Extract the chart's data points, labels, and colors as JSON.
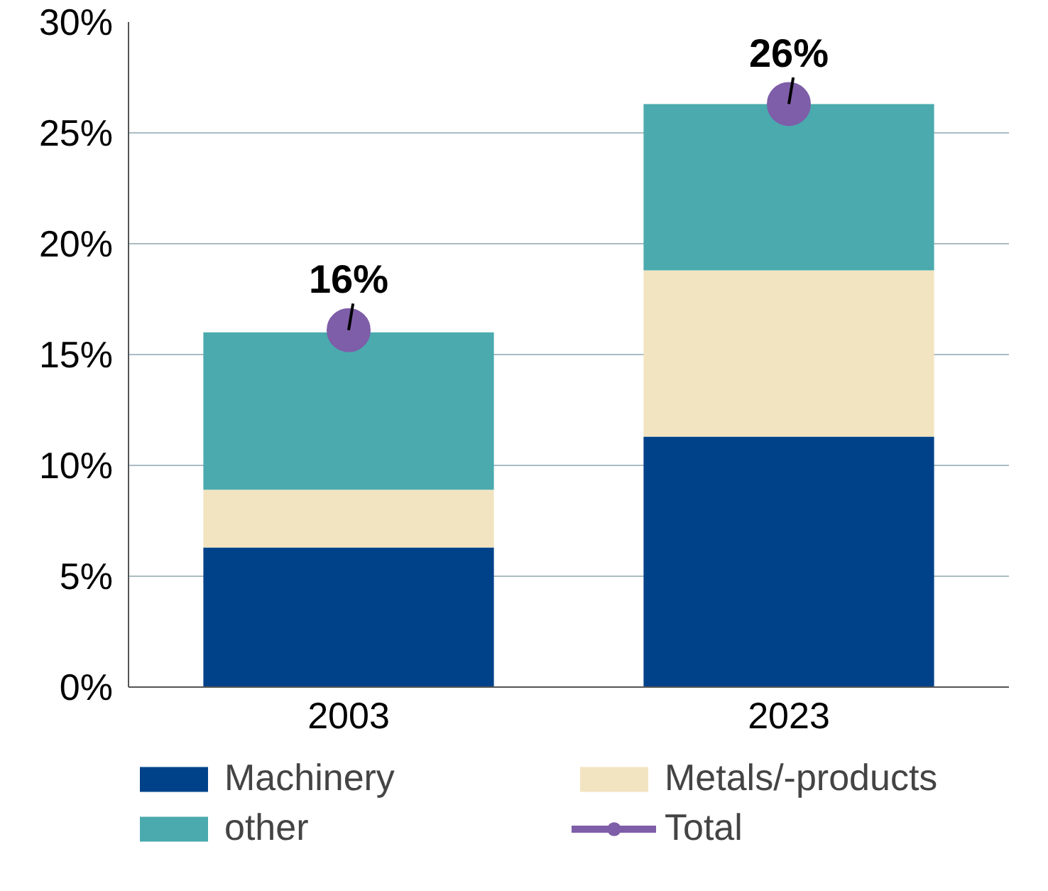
{
  "chart_data": {
    "type": "bar",
    "stacked": true,
    "categories": [
      "2003",
      "2023"
    ],
    "series": [
      {
        "name": "Machinery",
        "color": "#00428a",
        "values": [
          6.3,
          11.3
        ]
      },
      {
        "name": "Metals/-products",
        "color": "#f2e4c0",
        "values": [
          2.6,
          7.5
        ]
      },
      {
        "name": "other",
        "color": "#4aaaae",
        "values": [
          7.1,
          7.5
        ]
      },
      {
        "name": "Total",
        "type": "scatter",
        "color": "#7e5ea8",
        "values": [
          16.1,
          26.3
        ],
        "value_labels": [
          "16%",
          "26%"
        ]
      }
    ],
    "ylim": [
      0,
      30
    ],
    "yticks": [
      {
        "value": 0,
        "label": "0%"
      },
      {
        "value": 5,
        "label": "5%"
      },
      {
        "value": 10,
        "label": "10%"
      },
      {
        "value": 15,
        "label": "15%"
      },
      {
        "value": 20,
        "label": "20%"
      },
      {
        "value": 25,
        "label": "25%"
      },
      {
        "value": 30,
        "label": "30%"
      }
    ],
    "grid": "y",
    "legend": "bottom",
    "marker": "circle"
  }
}
